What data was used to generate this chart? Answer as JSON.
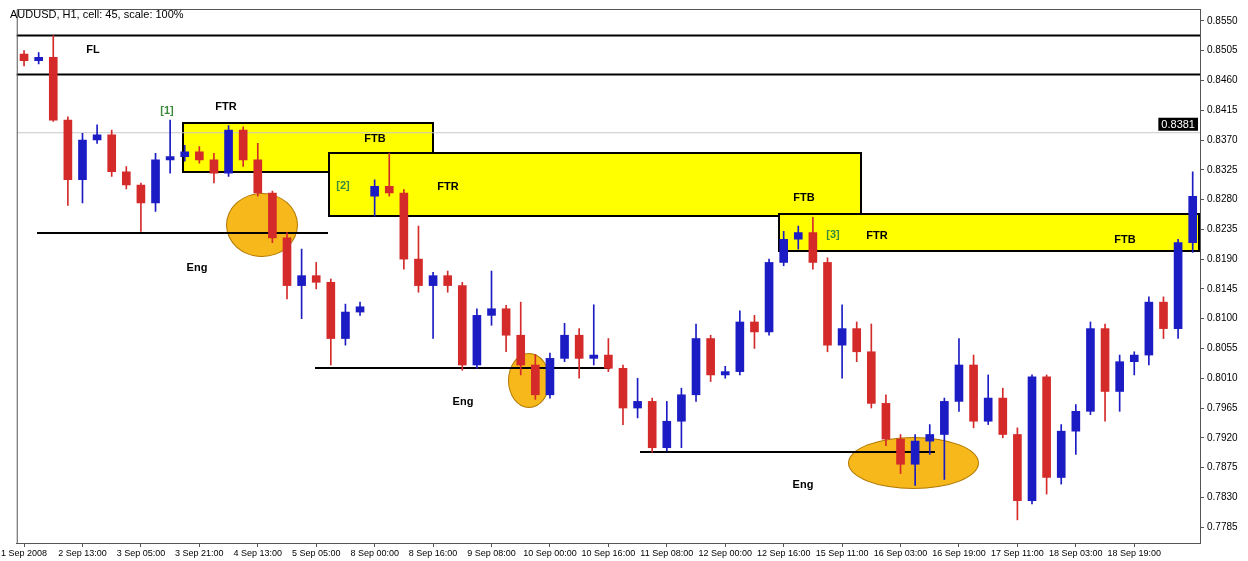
{
  "chart_data": {
    "type": "candlestick",
    "title": "AUDUSD, H1, cell: 45, scale: 100%",
    "categories": [
      "1 Sep 2008",
      null,
      null,
      null,
      "2 Sep 13:00",
      null,
      null,
      null,
      "3 Sep 05:00",
      null,
      null,
      null,
      "3 Sep 21:00",
      null,
      null,
      null,
      "4 Sep 13:00",
      null,
      null,
      null,
      "5 Sep 05:00",
      null,
      null,
      null,
      "8 Sep 00:00",
      null,
      null,
      null,
      "8 Sep 16:00",
      null,
      null,
      null,
      "9 Sep 08:00",
      null,
      null,
      null,
      "10 Sep 00:00",
      null,
      null,
      null,
      "10 Sep 16:00",
      null,
      null,
      null,
      "11 Sep 08:00",
      null,
      null,
      null,
      "12 Sep 00:00",
      null,
      null,
      null,
      "12 Sep 16:00",
      null,
      null,
      null,
      "15 Sep 11:00",
      null,
      null,
      null,
      "16 Sep 03:00",
      null,
      null,
      null,
      "16 Sep 19:00",
      null,
      null,
      null,
      "17 Sep 11:00",
      null,
      null,
      null,
      "18 Sep 03:00",
      null,
      null,
      null,
      "18 Sep 19:00",
      null,
      null,
      null,
      null
    ],
    "ohlc": [
      [
        0.85,
        0.8505,
        0.8482,
        0.849
      ],
      [
        0.849,
        0.8502,
        0.8485,
        0.8495
      ],
      [
        0.8495,
        0.8528,
        0.8398,
        0.84
      ],
      [
        0.84,
        0.8405,
        0.8271,
        0.831
      ],
      [
        0.831,
        0.838,
        0.8275,
        0.837
      ],
      [
        0.837,
        0.8393,
        0.8365,
        0.8378
      ],
      [
        0.8378,
        0.8385,
        0.8315,
        0.8322
      ],
      [
        0.8322,
        0.833,
        0.8296,
        0.8302
      ],
      [
        0.8302,
        0.8305,
        0.8232,
        0.8275
      ],
      [
        0.8275,
        0.835,
        0.8262,
        0.834
      ],
      [
        0.834,
        0.84,
        0.832,
        0.8345
      ],
      [
        0.8345,
        0.8362,
        0.8338,
        0.8352
      ],
      [
        0.8352,
        0.836,
        0.8335,
        0.834
      ],
      [
        0.834,
        0.835,
        0.8305,
        0.832
      ],
      [
        0.832,
        0.8392,
        0.8315,
        0.8385
      ],
      [
        0.8385,
        0.839,
        0.833,
        0.834
      ],
      [
        0.834,
        0.8365,
        0.8285,
        0.829
      ],
      [
        0.829,
        0.8293,
        0.8215,
        0.8222
      ],
      [
        0.8222,
        0.823,
        0.813,
        0.815
      ],
      [
        0.815,
        0.8205,
        0.81,
        0.8165
      ],
      [
        0.8165,
        0.8185,
        0.8145,
        0.8155
      ],
      [
        0.8155,
        0.816,
        0.803,
        0.807
      ],
      [
        0.807,
        0.8122,
        0.806,
        0.811
      ],
      [
        0.811,
        0.8125,
        0.8105,
        0.8118
      ],
      [
        0.8285,
        0.831,
        0.8255,
        0.83
      ],
      [
        0.83,
        0.835,
        0.8285,
        0.829
      ],
      [
        0.829,
        0.8295,
        0.8175,
        0.819
      ],
      [
        0.819,
        0.824,
        0.814,
        0.815
      ],
      [
        0.815,
        0.817,
        0.807,
        0.8165
      ],
      [
        0.8165,
        0.8172,
        0.814,
        0.815
      ],
      [
        0.815,
        0.8155,
        0.8022,
        0.803
      ],
      [
        0.803,
        0.8115,
        0.8025,
        0.8105
      ],
      [
        0.8105,
        0.8172,
        0.809,
        0.8115
      ],
      [
        0.8115,
        0.812,
        0.805,
        0.8075
      ],
      [
        0.8075,
        0.8125,
        0.8015,
        0.803
      ],
      [
        0.803,
        0.8046,
        0.7978,
        0.7985
      ],
      [
        0.7985,
        0.8048,
        0.798,
        0.804
      ],
      [
        0.804,
        0.8093,
        0.8035,
        0.8075
      ],
      [
        0.8075,
        0.8085,
        0.801,
        0.804
      ],
      [
        0.804,
        0.8121,
        0.803,
        0.8045
      ],
      [
        0.8045,
        0.807,
        0.802,
        0.8025
      ],
      [
        0.8025,
        0.803,
        0.794,
        0.7965
      ],
      [
        0.7965,
        0.801,
        0.795,
        0.7975
      ],
      [
        0.7975,
        0.798,
        0.7898,
        0.7905
      ],
      [
        0.7905,
        0.7975,
        0.79,
        0.7945
      ],
      [
        0.7945,
        0.7995,
        0.7905,
        0.7985
      ],
      [
        0.7985,
        0.8092,
        0.7975,
        0.807
      ],
      [
        0.807,
        0.8075,
        0.8005,
        0.8015
      ],
      [
        0.8015,
        0.8028,
        0.801,
        0.802
      ],
      [
        0.802,
        0.8112,
        0.8015,
        0.8095
      ],
      [
        0.8095,
        0.8105,
        0.8055,
        0.808
      ],
      [
        0.808,
        0.819,
        0.8075,
        0.8185
      ],
      [
        0.8185,
        0.8232,
        0.818,
        0.822
      ],
      [
        0.822,
        0.824,
        0.8205,
        0.823
      ],
      [
        0.823,
        0.8253,
        0.8175,
        0.8185
      ],
      [
        0.8185,
        0.8192,
        0.805,
        0.806
      ],
      [
        0.806,
        0.8121,
        0.801,
        0.8085
      ],
      [
        0.8085,
        0.8095,
        0.8035,
        0.805
      ],
      [
        0.805,
        0.8092,
        0.7965,
        0.7972
      ],
      [
        0.7972,
        0.7985,
        0.7908,
        0.7918
      ],
      [
        0.7918,
        0.7925,
        0.7866,
        0.788
      ],
      [
        0.788,
        0.7925,
        0.7848,
        0.7915
      ],
      [
        0.7915,
        0.794,
        0.7895,
        0.7925
      ],
      [
        0.7925,
        0.798,
        0.7857,
        0.7975
      ],
      [
        0.7975,
        0.807,
        0.796,
        0.803
      ],
      [
        0.803,
        0.8045,
        0.7935,
        0.7945
      ],
      [
        0.7945,
        0.8015,
        0.794,
        0.798
      ],
      [
        0.798,
        0.7995,
        0.792,
        0.7925
      ],
      [
        0.7925,
        0.7935,
        0.7796,
        0.7825
      ],
      [
        0.7825,
        0.8015,
        0.782,
        0.8012
      ],
      [
        0.8012,
        0.8015,
        0.7835,
        0.786
      ],
      [
        0.786,
        0.794,
        0.785,
        0.793
      ],
      [
        0.793,
        0.797,
        0.7895,
        0.796
      ],
      [
        0.796,
        0.8095,
        0.7955,
        0.8085
      ],
      [
        0.8085,
        0.8092,
        0.7945,
        0.799
      ],
      [
        0.799,
        0.8045,
        0.796,
        0.8035
      ],
      [
        0.8035,
        0.805,
        0.8015,
        0.8045
      ],
      [
        0.8045,
        0.8133,
        0.803,
        0.8125
      ],
      [
        0.8125,
        0.8133,
        0.807,
        0.8085
      ],
      [
        0.8085,
        0.822,
        0.807,
        0.8215
      ],
      [
        0.8215,
        0.8322,
        0.82,
        0.8285
      ]
    ],
    "colors": [
      "#d42a2a",
      "#1c1cc4",
      "#d42a2a",
      "#d42a2a",
      "#1c1cc4",
      "#1c1cc4",
      "#d42a2a",
      "#d42a2a",
      "#d42a2a",
      "#1c1cc4",
      "#1c1cc4",
      "#1c1cc4",
      "#d42a2a",
      "#d42a2a",
      "#1c1cc4",
      "#d42a2a",
      "#d42a2a",
      "#d42a2a",
      "#d42a2a",
      "#1c1cc4",
      "#d42a2a",
      "#d42a2a",
      "#1c1cc4",
      "#1c1cc4",
      "#1c1cc4",
      "#d42a2a",
      "#d42a2a",
      "#d42a2a",
      "#1c1cc4",
      "#d42a2a",
      "#d42a2a",
      "#1c1cc4",
      "#1c1cc4",
      "#d42a2a",
      "#d42a2a",
      "#d42a2a",
      "#1c1cc4",
      "#1c1cc4",
      "#d42a2a",
      "#1c1cc4",
      "#d42a2a",
      "#d42a2a",
      "#1c1cc4",
      "#d42a2a",
      "#1c1cc4",
      "#1c1cc4",
      "#1c1cc4",
      "#d42a2a",
      "#1c1cc4",
      "#1c1cc4",
      "#d42a2a",
      "#1c1cc4",
      "#1c1cc4",
      "#1c1cc4",
      "#d42a2a",
      "#d42a2a",
      "#1c1cc4",
      "#d42a2a",
      "#d42a2a",
      "#d42a2a",
      "#d42a2a",
      "#1c1cc4",
      "#1c1cc4",
      "#1c1cc4",
      "#1c1cc4",
      "#d42a2a",
      "#1c1cc4",
      "#d42a2a",
      "#d42a2a",
      "#1c1cc4",
      "#d42a2a",
      "#1c1cc4",
      "#1c1cc4",
      "#1c1cc4",
      "#d42a2a",
      "#1c1cc4",
      "#1c1cc4",
      "#1c1cc4",
      "#d42a2a",
      "#1c1cc4",
      "#1c1cc4"
    ],
    "ylim": [
      0.7761,
      0.8568
    ],
    "yticks": [
      {
        "value": 0.855,
        "label": "0.8550"
      },
      {
        "value": 0.8505,
        "label": "0.8505"
      },
      {
        "value": 0.846,
        "label": "0.8460"
      },
      {
        "value": 0.8415,
        "label": "0.8415"
      },
      {
        "value": 0.837,
        "label": "0.8370"
      },
      {
        "value": 0.8325,
        "label": "0.8325"
      },
      {
        "value": 0.828,
        "label": "0.8280"
      },
      {
        "value": 0.8235,
        "label": "0.8235"
      },
      {
        "value": 0.819,
        "label": "0.8190"
      },
      {
        "value": 0.8145,
        "label": "0.8145"
      },
      {
        "value": 0.81,
        "label": "0.8100"
      },
      {
        "value": 0.8055,
        "label": "0.8055"
      },
      {
        "value": 0.801,
        "label": "0.8010"
      },
      {
        "value": 0.7965,
        "label": "0.7965"
      },
      {
        "value": 0.792,
        "label": "0.7920"
      },
      {
        "value": 0.7875,
        "label": "0.7875"
      },
      {
        "value": 0.783,
        "label": "0.7830"
      },
      {
        "value": 0.7785,
        "label": "0.7785"
      }
    ],
    "ref_lines": [
      {
        "axis": "y",
        "value": 0.8528,
        "color": "#000000"
      },
      {
        "axis": "y",
        "value": 0.8469,
        "color": "#000000"
      },
      {
        "axis": "y",
        "value": 0.8381,
        "label": "0.8381",
        "color": "#c8c8c8"
      }
    ],
    "annotations": [
      "FL",
      "[1]",
      "FTR",
      "FTB",
      "[2]",
      "FTR",
      "FTB",
      "[3]",
      "FTR",
      "FTB",
      "Eng",
      "Eng",
      "Eng"
    ]
  }
}
